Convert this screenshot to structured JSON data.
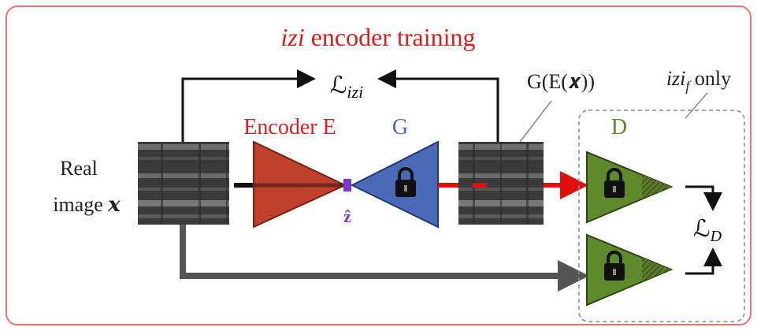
{
  "title": {
    "emphasis": "izi",
    "text": "encoder training"
  },
  "loss_izi": {
    "symbol": "ℒ",
    "subscript": "izi"
  },
  "encoder_label": "Encoder E",
  "generator_label": "G",
  "latent_label": "ẑ",
  "reconstruction_label": "G(E(𝒙))",
  "input_label": {
    "line1": "Real",
    "line2": "image",
    "variable": "𝒙"
  },
  "variant_note": {
    "emphasis": "izi",
    "subscript": "f",
    "text": "only"
  },
  "discriminator_label": "D",
  "loss_d": {
    "symbol": "ℒ",
    "subscript": "D"
  }
}
